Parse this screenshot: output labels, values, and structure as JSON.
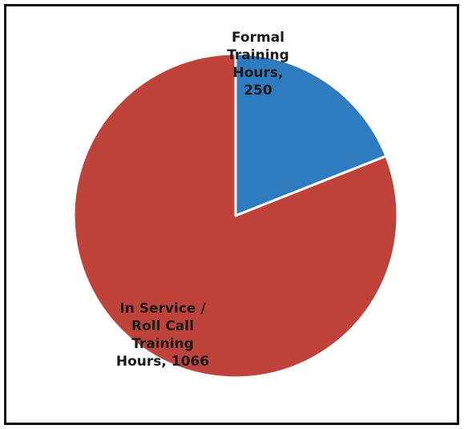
{
  "chart_data": {
    "type": "pie",
    "title": "",
    "slices": [
      {
        "label_lines": [
          "Formal",
          "Training",
          "Hours,",
          "250"
        ],
        "value": 250,
        "color": "#2f7bbf"
      },
      {
        "label_lines": [
          "In Service /",
          "Roll Call",
          "Training",
          "Hours, 1066"
        ],
        "value": 1066,
        "color": "#c0433b"
      }
    ],
    "start_angle_deg": 0,
    "direction": "clockwise",
    "legend": "none",
    "slice_border_color": "#ffffff"
  }
}
